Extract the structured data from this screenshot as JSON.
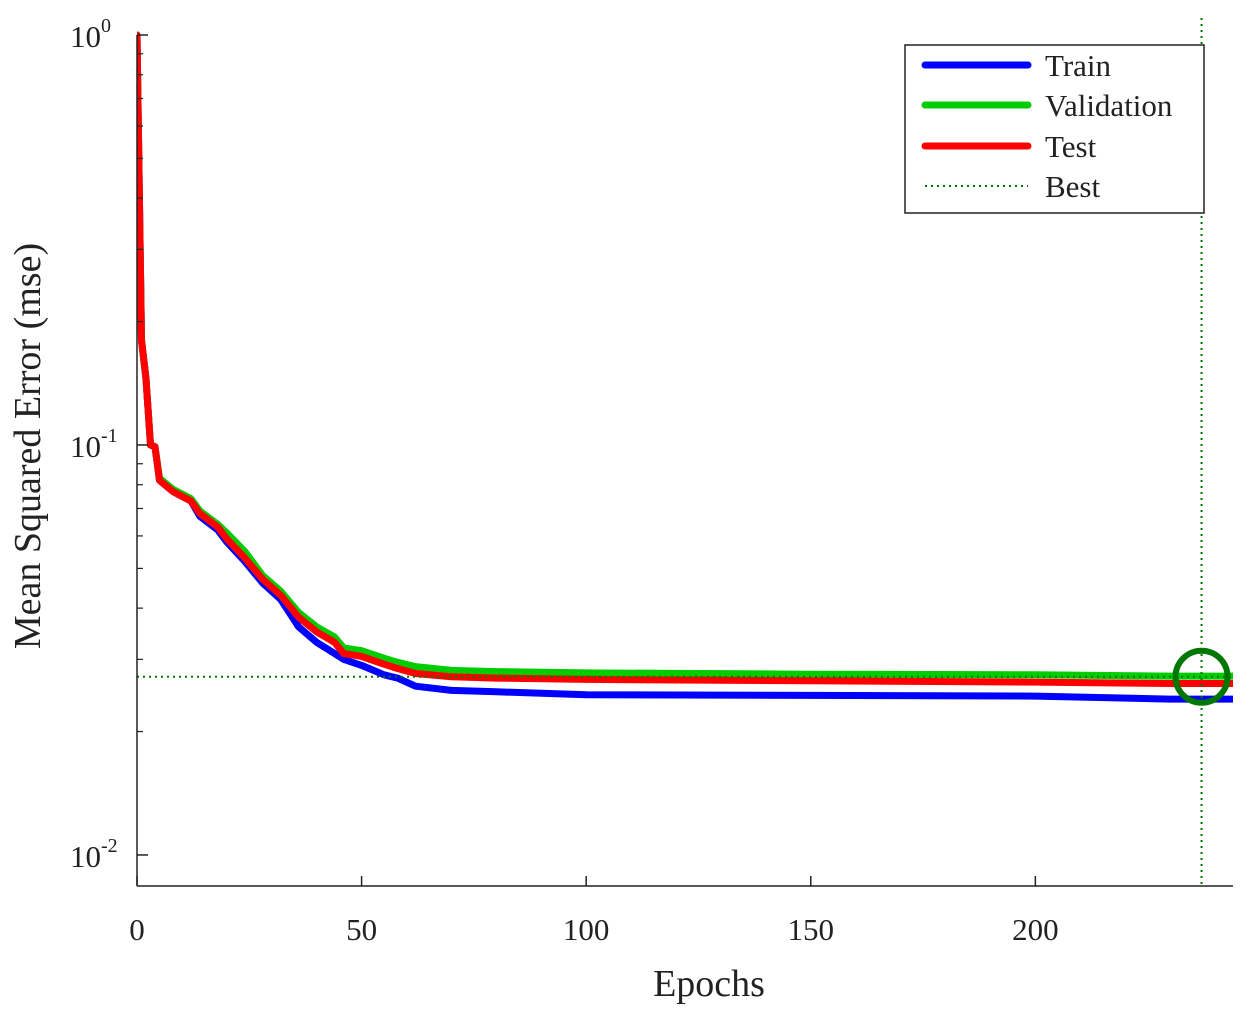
{
  "chart_data": {
    "type": "line",
    "title": "",
    "xlabel": "Epochs",
    "ylabel": "Mean Squared Error  (mse)",
    "xlim": [
      0,
      244
    ],
    "ylim": [
      0.0084,
      1.0
    ],
    "yscale": "log",
    "x_ticks": [
      0,
      50,
      100,
      150,
      200
    ],
    "x_tick_labels": [
      "0",
      "50",
      "100",
      "150",
      "200"
    ],
    "y_ticks": [
      {
        "value": 1,
        "base": "10",
        "exp": "0"
      },
      {
        "value": 0.1,
        "base": "10",
        "exp": "-1"
      },
      {
        "value": 0.01,
        "base": "10",
        "exp": "-2"
      }
    ],
    "legend": {
      "position": "top-right",
      "entries": [
        {
          "label": "Train",
          "color": "#0000ff",
          "style": "solid"
        },
        {
          "label": "Validation",
          "color": "#00cc00",
          "style": "solid"
        },
        {
          "label": "Test",
          "color": "#ff0000",
          "style": "solid"
        },
        {
          "label": "Best",
          "color": "#007700",
          "style": "dotted"
        }
      ]
    },
    "best": {
      "epoch": 237,
      "value": 0.0272,
      "color": "#007700"
    },
    "series": [
      {
        "name": "Train",
        "color": "#0000ff",
        "points": [
          [
            0,
            1.0
          ],
          [
            1,
            0.18
          ],
          [
            2,
            0.145
          ],
          [
            3,
            0.1
          ],
          [
            4,
            0.099
          ],
          [
            5,
            0.082
          ],
          [
            8,
            0.077
          ],
          [
            12,
            0.073
          ],
          [
            14,
            0.067
          ],
          [
            18,
            0.062
          ],
          [
            20,
            0.058
          ],
          [
            24,
            0.052
          ],
          [
            28,
            0.046
          ],
          [
            32,
            0.042
          ],
          [
            36,
            0.036
          ],
          [
            40,
            0.033
          ],
          [
            44,
            0.031
          ],
          [
            46,
            0.03
          ],
          [
            50,
            0.029
          ],
          [
            55,
            0.0275
          ],
          [
            58,
            0.027
          ],
          [
            62,
            0.0258
          ],
          [
            70,
            0.0252
          ],
          [
            80,
            0.025
          ],
          [
            100,
            0.0246
          ],
          [
            150,
            0.0245
          ],
          [
            200,
            0.0244
          ],
          [
            230,
            0.024
          ],
          [
            244,
            0.024
          ]
        ]
      },
      {
        "name": "Validation",
        "color": "#00cc00",
        "points": [
          [
            0,
            1.0
          ],
          [
            1,
            0.18
          ],
          [
            2,
            0.145
          ],
          [
            3,
            0.1
          ],
          [
            4,
            0.099
          ],
          [
            5,
            0.083
          ],
          [
            8,
            0.078
          ],
          [
            12,
            0.074
          ],
          [
            14,
            0.069
          ],
          [
            18,
            0.064
          ],
          [
            20,
            0.061
          ],
          [
            24,
            0.055
          ],
          [
            28,
            0.048
          ],
          [
            32,
            0.044
          ],
          [
            36,
            0.039
          ],
          [
            40,
            0.036
          ],
          [
            44,
            0.034
          ],
          [
            46,
            0.032
          ],
          [
            50,
            0.0315
          ],
          [
            55,
            0.0302
          ],
          [
            58,
            0.0295
          ],
          [
            62,
            0.0288
          ],
          [
            70,
            0.0282
          ],
          [
            80,
            0.028
          ],
          [
            100,
            0.0278
          ],
          [
            150,
            0.0276
          ],
          [
            200,
            0.0275
          ],
          [
            230,
            0.0273
          ],
          [
            244,
            0.0273
          ]
        ]
      },
      {
        "name": "Test",
        "color": "#ff0000",
        "points": [
          [
            0,
            1.0
          ],
          [
            1,
            0.18
          ],
          [
            2,
            0.145
          ],
          [
            3,
            0.1
          ],
          [
            4,
            0.099
          ],
          [
            5,
            0.082
          ],
          [
            8,
            0.077
          ],
          [
            12,
            0.073
          ],
          [
            14,
            0.068
          ],
          [
            18,
            0.063
          ],
          [
            20,
            0.059
          ],
          [
            24,
            0.053
          ],
          [
            28,
            0.047
          ],
          [
            32,
            0.043
          ],
          [
            36,
            0.038
          ],
          [
            40,
            0.035
          ],
          [
            44,
            0.033
          ],
          [
            46,
            0.031
          ],
          [
            50,
            0.0305
          ],
          [
            55,
            0.0292
          ],
          [
            58,
            0.0285
          ],
          [
            62,
            0.0277
          ],
          [
            70,
            0.0272
          ],
          [
            80,
            0.027
          ],
          [
            100,
            0.0268
          ],
          [
            150,
            0.0266
          ],
          [
            200,
            0.0264
          ],
          [
            230,
            0.0262
          ],
          [
            244,
            0.0262
          ]
        ]
      }
    ]
  }
}
